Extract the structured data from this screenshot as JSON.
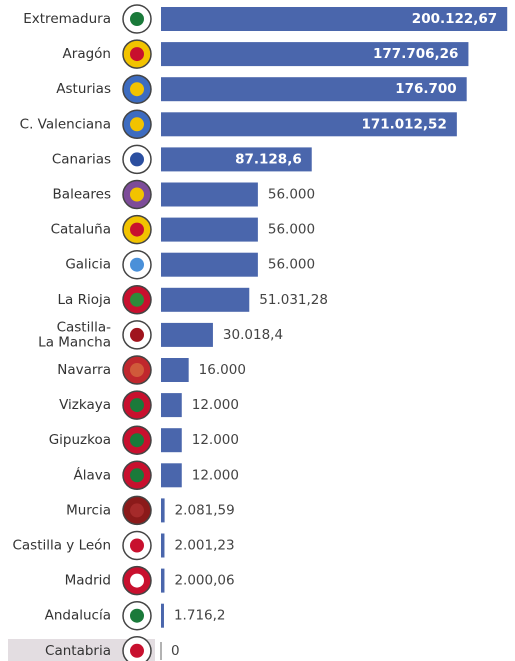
{
  "chart_data": {
    "type": "bar",
    "orientation": "horizontal",
    "color": "#4a66ac",
    "categories": [
      "Extremadura",
      "Aragón",
      "Asturias",
      "C. Valenciana",
      "Canarias",
      "Baleares",
      "Cataluña",
      "Galicia",
      "La Rioja",
      "Castilla-\nLa Mancha",
      "Navarra",
      "Vizkaya",
      "Gipuzkoa",
      "Álava",
      "Murcia",
      "Castilla y León",
      "Madrid",
      "Andalucía",
      "Cantabria"
    ],
    "values": [
      200122.67,
      177706.26,
      176700,
      171012.52,
      87128.6,
      56000,
      56000,
      56000,
      51031.28,
      30018.4,
      16000,
      12000,
      12000,
      12000,
      2081.59,
      2001.23,
      2000.06,
      1716.2,
      0
    ],
    "value_labels": [
      "200.122,67",
      "177.706,26",
      "176.700",
      "171.012,52",
      "87.128,6",
      "56.000",
      "56.000",
      "56.000",
      "51.031,28",
      "30.018,4",
      "16.000",
      "12.000",
      "12.000",
      "12.000",
      "2.081,59",
      "2.001,23",
      "2.000,06",
      "1.716,2",
      "0"
    ],
    "xlim": [
      0,
      200000
    ]
  }
}
